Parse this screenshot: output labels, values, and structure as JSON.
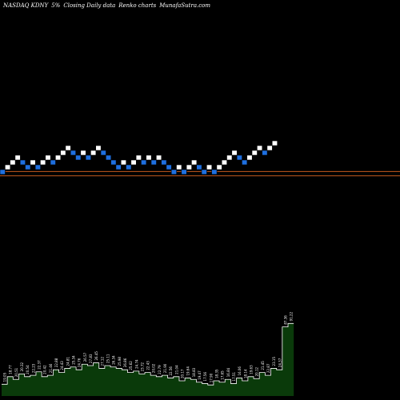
{
  "header": {
    "ticker": "NASDAQ KDNY",
    "pct": "5%",
    "mid": "Closing Daily data",
    "renko": "Renko charts",
    "site": "MunafaSutra.com"
  },
  "colors": {
    "background": "#000000",
    "up_brick": "#ffffff",
    "down_brick": "#1e6fe0",
    "reference_line": "#c45a1e",
    "volume_fill": "#0a3a0a",
    "volume_line": "#ffffff",
    "volume_label": "#ffffff"
  },
  "chart_data": {
    "type": "renko",
    "bricks": [
      {
        "dir": "down",
        "level": 1
      },
      {
        "dir": "up",
        "level": 2
      },
      {
        "dir": "up",
        "level": 3
      },
      {
        "dir": "up",
        "level": 4
      },
      {
        "dir": "down",
        "level": 3
      },
      {
        "dir": "down",
        "level": 2
      },
      {
        "dir": "up",
        "level": 3
      },
      {
        "dir": "down",
        "level": 2
      },
      {
        "dir": "up",
        "level": 3
      },
      {
        "dir": "up",
        "level": 4
      },
      {
        "dir": "down",
        "level": 3
      },
      {
        "dir": "up",
        "level": 4
      },
      {
        "dir": "up",
        "level": 5
      },
      {
        "dir": "up",
        "level": 6
      },
      {
        "dir": "down",
        "level": 5
      },
      {
        "dir": "down",
        "level": 4
      },
      {
        "dir": "up",
        "level": 5
      },
      {
        "dir": "down",
        "level": 4
      },
      {
        "dir": "up",
        "level": 5
      },
      {
        "dir": "up",
        "level": 6
      },
      {
        "dir": "down",
        "level": 5
      },
      {
        "dir": "down",
        "level": 4
      },
      {
        "dir": "down",
        "level": 3
      },
      {
        "dir": "down",
        "level": 2
      },
      {
        "dir": "up",
        "level": 3
      },
      {
        "dir": "down",
        "level": 2
      },
      {
        "dir": "up",
        "level": 3
      },
      {
        "dir": "up",
        "level": 4
      },
      {
        "dir": "down",
        "level": 3
      },
      {
        "dir": "up",
        "level": 4
      },
      {
        "dir": "down",
        "level": 3
      },
      {
        "dir": "up",
        "level": 4
      },
      {
        "dir": "down",
        "level": 3
      },
      {
        "dir": "down",
        "level": 2
      },
      {
        "dir": "down",
        "level": 1
      },
      {
        "dir": "up",
        "level": 2
      },
      {
        "dir": "down",
        "level": 1
      },
      {
        "dir": "up",
        "level": 2
      },
      {
        "dir": "up",
        "level": 3
      },
      {
        "dir": "down",
        "level": 2
      },
      {
        "dir": "down",
        "level": 1
      },
      {
        "dir": "up",
        "level": 2
      },
      {
        "dir": "down",
        "level": 1
      },
      {
        "dir": "up",
        "level": 2
      },
      {
        "dir": "up",
        "level": 3
      },
      {
        "dir": "up",
        "level": 4
      },
      {
        "dir": "up",
        "level": 5
      },
      {
        "dir": "down",
        "level": 4
      },
      {
        "dir": "down",
        "level": 3
      },
      {
        "dir": "up",
        "level": 4
      },
      {
        "dir": "up",
        "level": 5
      },
      {
        "dir": "up",
        "level": 6
      },
      {
        "dir": "down",
        "level": 5
      },
      {
        "dir": "up",
        "level": 6
      },
      {
        "dir": "up",
        "level": 7
      }
    ],
    "reference_lines": [
      1.6,
      0.7
    ],
    "volume": {
      "values": [
        17,
        28,
        24,
        32,
        28,
        30,
        35,
        28,
        30,
        38,
        34,
        40,
        42,
        38,
        46,
        44,
        48,
        40,
        44,
        42,
        40,
        38,
        34,
        36,
        32,
        34,
        30,
        28,
        30,
        26,
        28,
        22,
        26,
        24,
        20,
        18,
        16,
        22,
        20,
        24,
        18,
        26,
        22,
        28,
        25,
        34,
        30,
        40,
        38,
        100,
        105
      ],
      "labels": [
        "19.05",
        "18.77",
        "20.51",
        "20.32",
        "20.54",
        "22.23",
        "22.37",
        "20.42",
        "21.46",
        "22.88",
        "24.43",
        "24.81",
        "25.34",
        "24.76",
        "26.57",
        "27.83",
        "26.45",
        "27.12",
        "25.11",
        "26.34",
        "25.98",
        "26.86",
        "25.62",
        "24.74",
        "23.72",
        "22.43",
        "20.02",
        "22.79",
        "21.90",
        "22.56",
        "21.04",
        "20.17",
        "19.64",
        "18.83",
        "19.47",
        "17.56",
        "17.90",
        "18.35",
        "17.65",
        "16.84",
        "17.51",
        "16.06",
        "18.14",
        "19.63",
        "20.12",
        "21.45",
        "22.87",
        "23.15",
        "24.37",
        "87.36",
        "91.22"
      ]
    }
  }
}
